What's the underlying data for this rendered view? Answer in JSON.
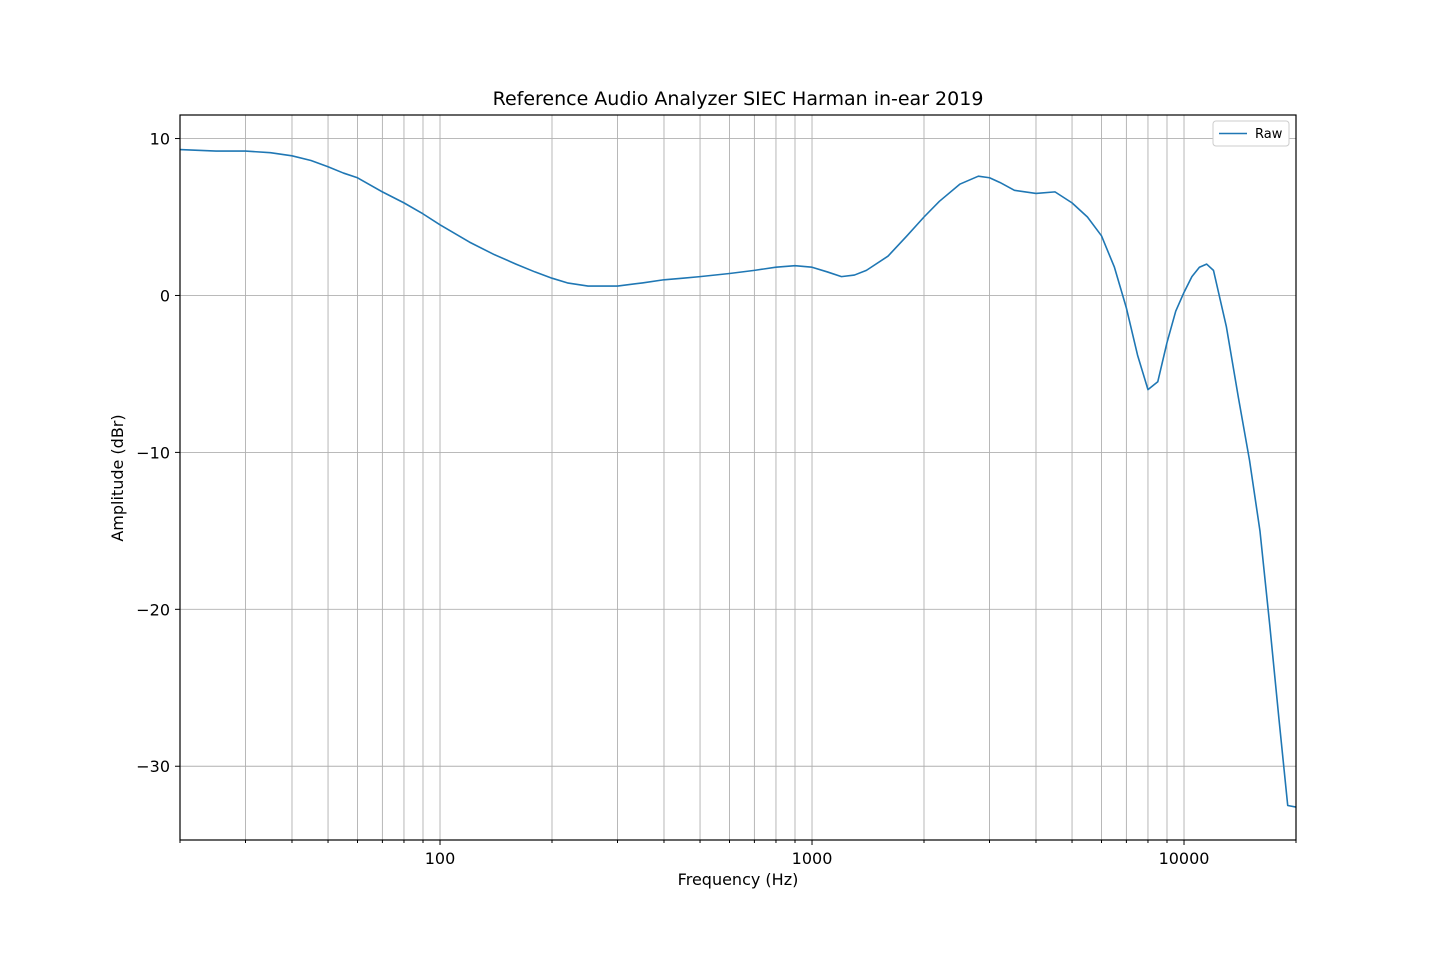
{
  "chart_data": {
    "type": "line",
    "title": "Reference Audio Analyzer SIEC Harman in-ear 2019",
    "xlabel": "Frequency (Hz)",
    "ylabel": "Amplitude (dBr)",
    "x_scale": "log",
    "xlim": [
      20,
      20000
    ],
    "ylim": [
      -34.7,
      11.5
    ],
    "x_major_ticks": [
      100,
      1000,
      10000
    ],
    "x_major_tick_labels": [
      "100",
      "1000",
      "10000"
    ],
    "y_ticks": [
      10,
      0,
      -10,
      -20,
      -30
    ],
    "y_tick_labels": [
      "10",
      "0",
      "−10",
      "−20",
      "−30"
    ],
    "grid": true,
    "legend_position": "top-right",
    "series": [
      {
        "name": "Raw",
        "color": "#1f77b4",
        "x": [
          20,
          25,
          30,
          35,
          40,
          45,
          50,
          55,
          60,
          70,
          80,
          90,
          100,
          120,
          140,
          160,
          180,
          200,
          220,
          250,
          280,
          300,
          350,
          400,
          450,
          500,
          600,
          700,
          800,
          900,
          1000,
          1100,
          1200,
          1300,
          1400,
          1600,
          1800,
          2000,
          2200,
          2500,
          2800,
          3000,
          3200,
          3500,
          4000,
          4500,
          5000,
          5500,
          6000,
          6500,
          7000,
          7500,
          8000,
          8500,
          9000,
          9500,
          10000,
          10500,
          11000,
          11500,
          12000,
          13000,
          14000,
          15000,
          16000,
          17000,
          18000,
          19000,
          20000
        ],
        "y": [
          9.3,
          9.2,
          9.2,
          9.1,
          8.9,
          8.6,
          8.2,
          7.8,
          7.5,
          6.6,
          5.9,
          5.2,
          4.5,
          3.4,
          2.6,
          2.0,
          1.5,
          1.1,
          0.8,
          0.6,
          0.6,
          0.6,
          0.8,
          1.0,
          1.1,
          1.2,
          1.4,
          1.6,
          1.8,
          1.9,
          1.8,
          1.5,
          1.2,
          1.3,
          1.6,
          2.5,
          3.8,
          5.0,
          6.0,
          7.1,
          7.6,
          7.5,
          7.2,
          6.7,
          6.5,
          6.6,
          5.9,
          5.0,
          3.8,
          1.8,
          -0.8,
          -3.8,
          -6.0,
          -5.5,
          -3.0,
          -1.0,
          0.2,
          1.2,
          1.8,
          2.0,
          1.6,
          -2.0,
          -6.5,
          -10.5,
          -15.0,
          -21.0,
          -27.0,
          -32.5,
          -32.6
        ]
      }
    ]
  }
}
